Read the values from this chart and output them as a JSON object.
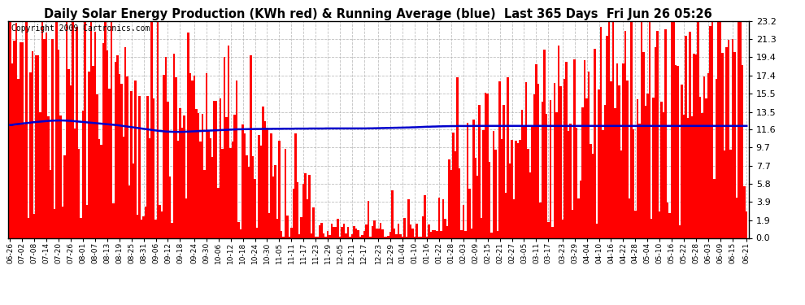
{
  "title": "Daily Solar Energy Production (KWh red) & Running Average (blue)  Last 365 Days  Fri Jun 26 05:26",
  "copyright_text": "Copyright 2009 Cartronics.com",
  "yticks": [
    0.0,
    1.9,
    3.9,
    5.8,
    7.7,
    9.7,
    11.6,
    13.5,
    15.5,
    17.4,
    19.4,
    21.3,
    23.2
  ],
  "ymax": 23.2,
  "bar_color": "#ff0000",
  "avg_color": "#0000cc",
  "bg_color": "#ffffff",
  "grid_color": "#b0b0b0",
  "title_fontsize": 10.5,
  "copyright_fontsize": 7,
  "x_labels": [
    "06-26",
    "07-02",
    "07-08",
    "07-14",
    "07-20",
    "07-26",
    "08-01",
    "08-07",
    "08-13",
    "08-19",
    "08-25",
    "08-31",
    "09-06",
    "09-12",
    "09-18",
    "09-24",
    "09-30",
    "10-06",
    "10-12",
    "10-18",
    "10-24",
    "10-30",
    "11-05",
    "11-11",
    "11-17",
    "11-23",
    "11-29",
    "12-05",
    "12-11",
    "12-17",
    "12-23",
    "12-29",
    "01-04",
    "01-10",
    "01-16",
    "01-22",
    "01-28",
    "02-03",
    "02-09",
    "02-15",
    "02-21",
    "02-27",
    "03-05",
    "03-11",
    "03-17",
    "03-23",
    "03-29",
    "04-04",
    "04-10",
    "04-16",
    "04-22",
    "04-28",
    "05-04",
    "05-10",
    "05-16",
    "05-22",
    "05-28",
    "06-03",
    "06-09",
    "06-15",
    "06-21"
  ],
  "n_days": 365,
  "avg_values": [
    12.1,
    12.1,
    12.15,
    12.18,
    12.2,
    12.22,
    12.25,
    12.28,
    12.3,
    12.32,
    12.35,
    12.38,
    12.4,
    12.42,
    12.44,
    12.46,
    12.48,
    12.5,
    12.52,
    12.54,
    12.55,
    12.56,
    12.57,
    12.57,
    12.58,
    12.58,
    12.58,
    12.57,
    12.56,
    12.55,
    12.54,
    12.52,
    12.5,
    12.48,
    12.46,
    12.44,
    12.42,
    12.4,
    12.38,
    12.36,
    12.34,
    12.32,
    12.3,
    12.28,
    12.26,
    12.24,
    12.22,
    12.2,
    12.18,
    12.16,
    12.14,
    12.12,
    12.1,
    12.08,
    12.05,
    12.02,
    11.99,
    11.96,
    11.93,
    11.9,
    11.87,
    11.84,
    11.81,
    11.78,
    11.75,
    11.72,
    11.69,
    11.66,
    11.63,
    11.6,
    11.57,
    11.54,
    11.51,
    11.48,
    11.46,
    11.44,
    11.42,
    11.4,
    11.39,
    11.38,
    11.37,
    11.36,
    11.36,
    11.36,
    11.36,
    11.36,
    11.37,
    11.38,
    11.39,
    11.4,
    11.41,
    11.42,
    11.43,
    11.44,
    11.45,
    11.46,
    11.47,
    11.48,
    11.49,
    11.5,
    11.51,
    11.52,
    11.53,
    11.54,
    11.55,
    11.56,
    11.57,
    11.58,
    11.59,
    11.6,
    11.61,
    11.62,
    11.63,
    11.64,
    11.64,
    11.65,
    11.65,
    11.65,
    11.66,
    11.66,
    11.66,
    11.67,
    11.67,
    11.67,
    11.67,
    11.68,
    11.68,
    11.68,
    11.68,
    11.68,
    11.69,
    11.69,
    11.69,
    11.69,
    11.69,
    11.7,
    11.7,
    11.7,
    11.7,
    11.7,
    11.7,
    11.71,
    11.71,
    11.71,
    11.71,
    11.71,
    11.71,
    11.71,
    11.72,
    11.72,
    11.72,
    11.72,
    11.72,
    11.72,
    11.72,
    11.72,
    11.73,
    11.73,
    11.73,
    11.73,
    11.73,
    11.73,
    11.73,
    11.73,
    11.73,
    11.73,
    11.73,
    11.73,
    11.73,
    11.73,
    11.73,
    11.73,
    11.73,
    11.73,
    11.73,
    11.73,
    11.73,
    11.74,
    11.74,
    11.74,
    11.75,
    11.75,
    11.76,
    11.76,
    11.77,
    11.77,
    11.78,
    11.78,
    11.79,
    11.79,
    11.8,
    11.8,
    11.81,
    11.81,
    11.82,
    11.82,
    11.83,
    11.83,
    11.84,
    11.85,
    11.85,
    11.86,
    11.87,
    11.88,
    11.89,
    11.9,
    11.91,
    11.91,
    11.92,
    11.93,
    11.93,
    11.94,
    11.95,
    11.95,
    11.96,
    11.96,
    11.97,
    11.97,
    11.98,
    11.98,
    11.98,
    11.99,
    11.99,
    11.99,
    11.99,
    11.99,
    11.99,
    11.99,
    11.99,
    12.0,
    12.0,
    12.0,
    12.0,
    12.0,
    12.0,
    12.0,
    12.0,
    12.0,
    12.0,
    12.0,
    12.0,
    12.0,
    12.0,
    12.0,
    12.0,
    12.0,
    12.0,
    12.0,
    12.0,
    12.0,
    12.0,
    12.0,
    12.0,
    12.0,
    12.0,
    12.0,
    12.0,
    12.0,
    12.0,
    12.0,
    12.0,
    12.0,
    12.0,
    12.0,
    12.0,
    12.0,
    12.0,
    12.0,
    12.0,
    12.0,
    12.0,
    12.0,
    12.0,
    12.0,
    12.0,
    12.0,
    12.0,
    12.0,
    12.0,
    12.0,
    12.0,
    12.0,
    12.0,
    12.0,
    12.0,
    12.0,
    12.0,
    12.0,
    12.0,
    12.0,
    12.0,
    12.0,
    12.0,
    12.0,
    12.0,
    12.0,
    12.0,
    12.0,
    12.0,
    12.0,
    12.0,
    12.0,
    12.0,
    12.0,
    12.0,
    12.0,
    12.0,
    12.0,
    12.0,
    12.0,
    12.0,
    12.0,
    12.0,
    12.0,
    12.0,
    12.0,
    12.0,
    12.0,
    12.0,
    12.0,
    12.0,
    12.0,
    12.0,
    12.0,
    12.0,
    12.0,
    12.0,
    12.0,
    12.0,
    12.0,
    12.0,
    12.0,
    12.0,
    12.0,
    12.0,
    12.0,
    12.0,
    12.0,
    12.0,
    12.0,
    12.0,
    12.0,
    12.0,
    12.0,
    12.0,
    12.0,
    12.0,
    12.0,
    12.0,
    12.0,
    12.0,
    12.0,
    12.0,
    12.0,
    12.0,
    12.0,
    12.0,
    12.0,
    12.0,
    12.0,
    12.0,
    12.0,
    12.0,
    12.0,
    12.0
  ]
}
